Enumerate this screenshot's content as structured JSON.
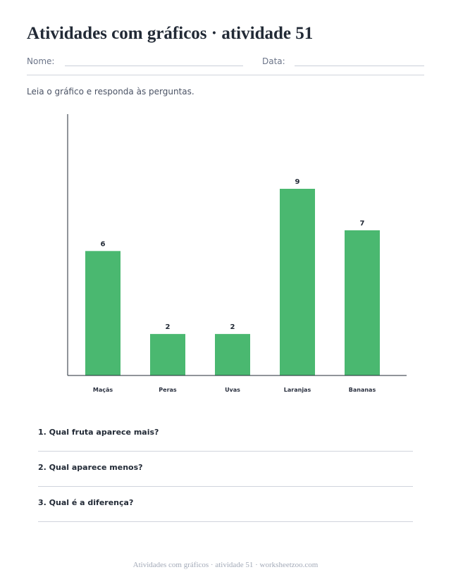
{
  "title": "Atividades com gráficos · atividade 51",
  "fields": {
    "name_label": "Nome:",
    "date_label": "Data:"
  },
  "instructions": "Leia o gráfico e responda às perguntas.",
  "colors": {
    "bar": "#4ab870",
    "axis": "#222a36",
    "rule": "#d0d4dc"
  },
  "chart_data": {
    "type": "bar",
    "categories": [
      "Maçãs",
      "Peras",
      "Uvas",
      "Laranjas",
      "Bananas"
    ],
    "values": [
      6,
      2,
      2,
      9,
      7
    ],
    "ylim": [
      0,
      12.6
    ],
    "grid": false,
    "data_labels": true
  },
  "questions": [
    {
      "text": "1. Qual fruta aparece mais?"
    },
    {
      "text": "2. Qual aparece menos?"
    },
    {
      "text": "3. Qual é a diferença?"
    }
  ],
  "footer": "Atividades com gráficos · atividade 51 · worksheetzoo.com"
}
